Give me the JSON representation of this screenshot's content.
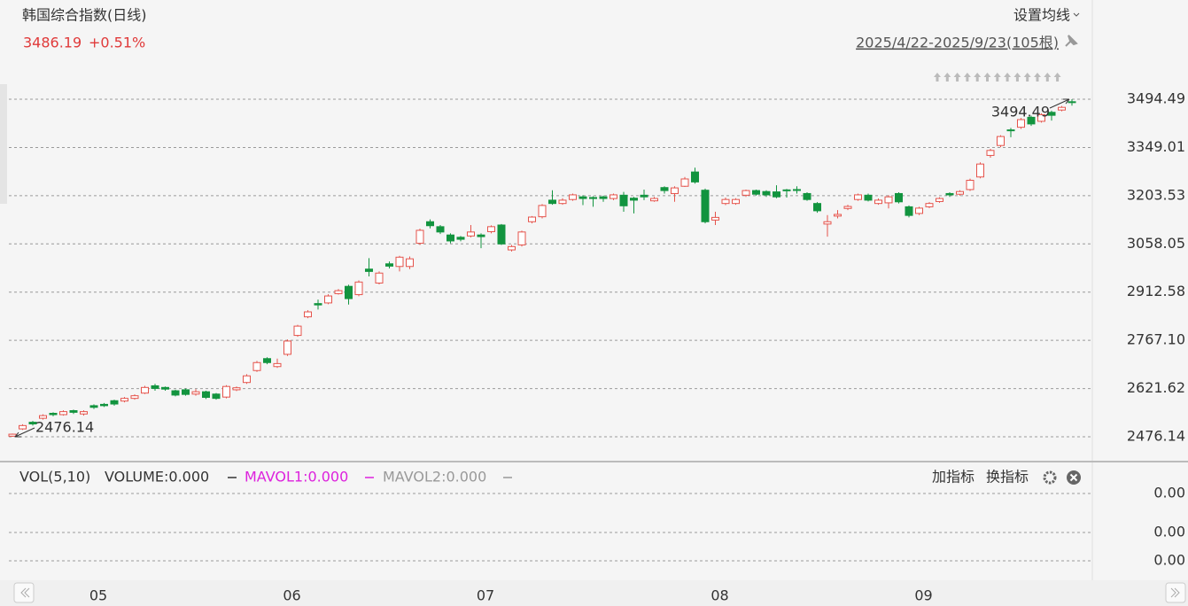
{
  "chart_data": {
    "type": "candlestick",
    "title": "韩国综合指数(日线)",
    "last_price": 3486.19,
    "change": {
      "value": 0.51,
      "label": "+0.51%"
    },
    "ma_button": "设置均线",
    "range_label": "2025/4/22-2025/9/23(105根)",
    "categories": [
      null,
      null,
      null,
      null,
      null,
      null,
      null,
      null,
      "05",
      null,
      null,
      null,
      null,
      null,
      null,
      null,
      null,
      null,
      null,
      null,
      null,
      null,
      null,
      null,
      null,
      null,
      null,
      "06",
      null,
      null,
      null,
      null,
      null,
      null,
      null,
      null,
      null,
      null,
      null,
      null,
      null,
      null,
      null,
      null,
      null,
      null,
      "07",
      null,
      null,
      null,
      null,
      null,
      null,
      null,
      null,
      null,
      null,
      null,
      null,
      null,
      null,
      null,
      null,
      null,
      null,
      null,
      null,
      null,
      null,
      "08",
      null,
      null,
      null,
      null,
      null,
      null,
      null,
      null,
      null,
      null,
      null,
      null,
      null,
      null,
      null,
      null,
      null,
      null,
      null,
      "09",
      null,
      null,
      null,
      null,
      null,
      null,
      null,
      null,
      null,
      null,
      null,
      null,
      null,
      null,
      null
    ],
    "open": [
      2478,
      2500,
      2520,
      2532,
      2547,
      2543,
      2555,
      2545,
      2570,
      2574,
      2585,
      2584,
      2592,
      2608,
      2630,
      2625,
      2615,
      2618,
      2605,
      2612,
      2605,
      2596,
      2618,
      2640,
      2676,
      2712,
      2688,
      2725,
      2782,
      2838,
      2878,
      2880,
      2908,
      2930,
      2905,
      2982,
      2940,
      2998,
      2990,
      2990,
      3060,
      3125,
      3110,
      3085,
      3078,
      3082,
      3085,
      3095,
      3115,
      3040,
      3055,
      3125,
      3140,
      3190,
      3180,
      3192,
      3200,
      3198,
      3200,
      3195,
      3205,
      3196,
      3205,
      3188,
      3228,
      3210,
      3232,
      3275,
      3220,
      3130,
      3180,
      3180,
      3205,
      3219,
      3216,
      3215,
      3221,
      3222,
      3210,
      3180,
      3118,
      3142,
      3165,
      3192,
      3205,
      3180,
      3182,
      3210,
      3170,
      3150,
      3170,
      3186,
      3210,
      3208,
      3222,
      3260,
      3325,
      3355,
      3402,
      3410,
      3440,
      3428,
      3455,
      3462,
      3487
    ],
    "high": [
      2486,
      2514,
      2524,
      2544,
      2550,
      2556,
      2558,
      2556,
      2574,
      2578,
      2588,
      2596,
      2604,
      2630,
      2636,
      2628,
      2618,
      2622,
      2620,
      2615,
      2608,
      2632,
      2628,
      2665,
      2705,
      2716,
      2712,
      2770,
      2814,
      2858,
      2890,
      2906,
      2922,
      2935,
      2948,
      3015,
      2975,
      3005,
      3022,
      3020,
      3104,
      3132,
      3115,
      3090,
      3082,
      3115,
      3090,
      3114,
      3118,
      3055,
      3098,
      3142,
      3178,
      3220,
      3196,
      3210,
      3205,
      3202,
      3204,
      3210,
      3215,
      3200,
      3222,
      3200,
      3232,
      3232,
      3260,
      3288,
      3225,
      3155,
      3198,
      3196,
      3222,
      3222,
      3220,
      3235,
      3224,
      3232,
      3214,
      3184,
      3145,
      3160,
      3176,
      3210,
      3210,
      3195,
      3205,
      3214,
      3174,
      3170,
      3184,
      3199,
      3214,
      3220,
      3255,
      3304,
      3345,
      3386,
      3408,
      3438,
      3445,
      3452,
      3460,
      3474,
      3494.49
    ],
    "low": [
      2476.14,
      2497,
      2510,
      2528,
      2538,
      2540,
      2545,
      2540,
      2560,
      2566,
      2570,
      2580,
      2588,
      2605,
      2615,
      2615,
      2598,
      2600,
      2600,
      2590,
      2588,
      2592,
      2614,
      2636,
      2672,
      2695,
      2684,
      2720,
      2778,
      2834,
      2860,
      2876,
      2905,
      2875,
      2900,
      2960,
      2936,
      2984,
      2975,
      2982,
      3055,
      3105,
      3088,
      3060,
      3066,
      3078,
      3045,
      3090,
      3055,
      3035,
      3050,
      3120,
      3135,
      3176,
      3176,
      3188,
      3175,
      3170,
      3185,
      3190,
      3155,
      3150,
      3190,
      3185,
      3210,
      3185,
      3230,
      3240,
      3120,
      3115,
      3175,
      3176,
      3200,
      3204,
      3200,
      3196,
      3198,
      3210,
      3188,
      3152,
      3080,
      3135,
      3160,
      3188,
      3186,
      3176,
      3165,
      3180,
      3138,
      3145,
      3166,
      3182,
      3200,
      3204,
      3218,
      3256,
      3318,
      3350,
      3380,
      3405,
      3414,
      3424,
      3430,
      3458,
      3475
    ],
    "close": [
      2484,
      2510,
      2515,
      2540,
      2543,
      2552,
      2550,
      2552,
      2565,
      2570,
      2575,
      2592,
      2600,
      2625,
      2622,
      2620,
      2602,
      2604,
      2612,
      2595,
      2592,
      2628,
      2624,
      2660,
      2700,
      2700,
      2697,
      2765,
      2810,
      2853,
      2874,
      2901,
      2917,
      2893,
      2943,
      2975,
      2970,
      2991,
      3018,
      3013,
      3099,
      3113,
      3094,
      3067,
      3072,
      3094,
      3080,
      3110,
      3058,
      3050,
      3094,
      3139,
      3174,
      3180,
      3190,
      3206,
      3195,
      3195,
      3195,
      3206,
      3173,
      3190,
      3200,
      3195,
      3219,
      3227,
      3254,
      3245,
      3125,
      3138,
      3192,
      3192,
      3219,
      3208,
      3206,
      3200,
      3220,
      3221,
      3192,
      3158,
      3125,
      3147,
      3171,
      3206,
      3190,
      3190,
      3200,
      3185,
      3144,
      3166,
      3180,
      3195,
      3206,
      3216,
      3250,
      3299,
      3340,
      3382,
      3400,
      3433,
      3420,
      3448,
      3446,
      3470,
      3486.19
    ],
    "up_color": "#e5534b",
    "down_color": "#12943f",
    "ylim": [
      2404,
      3526.6
    ],
    "yticks": [
      2476.14,
      2621.62,
      {
        "value": 2767.1,
        "label": "2767.10"
      },
      2912.58,
      3058.05,
      3203.53,
      3349.01,
      3494.49
    ],
    "grid": true,
    "max_annotation": 3494.49,
    "min_annotation": 2476.14
  },
  "volume_panel": {
    "title": "VOL(5,10)",
    "legend": [
      {
        "label": "VOLUME:0.000",
        "color": "#333333"
      },
      {
        "label": "MAVOL1:0.000",
        "color": "#dd22dd"
      },
      {
        "label": "MAVOL2:0.000",
        "color": "#999999"
      }
    ],
    "buttons": [
      "加指标",
      "换指标"
    ],
    "ytick_labels": [
      "0.00",
      "0.00",
      "0.00"
    ]
  }
}
